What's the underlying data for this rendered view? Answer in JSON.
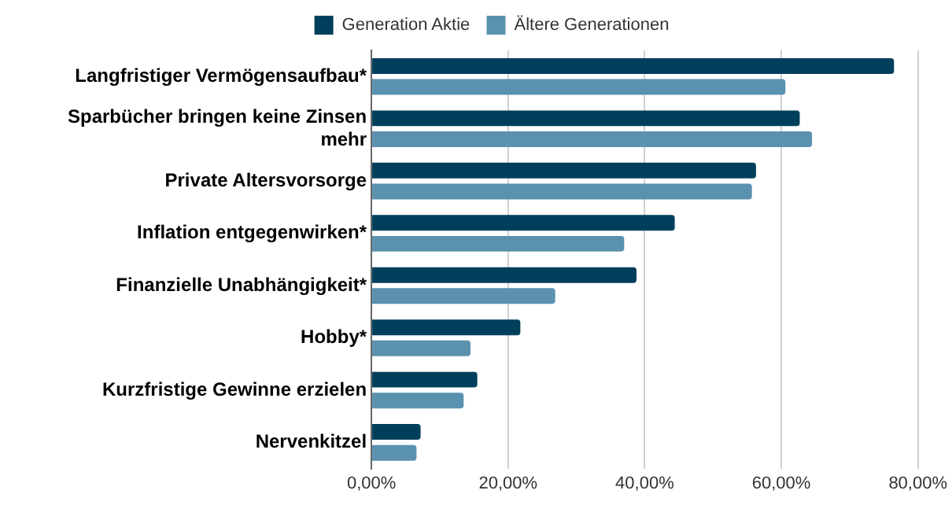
{
  "chart_data": {
    "type": "bar",
    "orientation": "horizontal",
    "categories": [
      "Langfristiger Vermögensaufbau*",
      "Sparbücher bringen keine Zinsen mehr",
      "Private Altersvorsorge",
      "Inflation entgegenwirken*",
      "Finanzielle Unabhängigkeit*",
      "Hobby*",
      "Kurzfristige Gewinne erzielen",
      "Nervenkitzel"
    ],
    "series": [
      {
        "name": "Generation Aktie",
        "color": "#003f5c",
        "values": [
          76.5,
          62.7,
          56.3,
          44.4,
          38.8,
          21.8,
          15.5,
          7.2
        ]
      },
      {
        "name": "Ältere Generationen",
        "color": "#5a91ae",
        "values": [
          60.6,
          64.5,
          55.7,
          37.0,
          26.9,
          14.5,
          13.5,
          6.6
        ]
      }
    ],
    "xlim": [
      0,
      80
    ],
    "xticks": [
      {
        "value": 0,
        "label": "0,00%"
      },
      {
        "value": 20,
        "label": "20,00%"
      },
      {
        "value": 40,
        "label": "40,00%"
      },
      {
        "value": 60,
        "label": "60,00%"
      },
      {
        "value": 80,
        "label": "80,00%"
      }
    ],
    "grid": "x",
    "legend": "top"
  }
}
